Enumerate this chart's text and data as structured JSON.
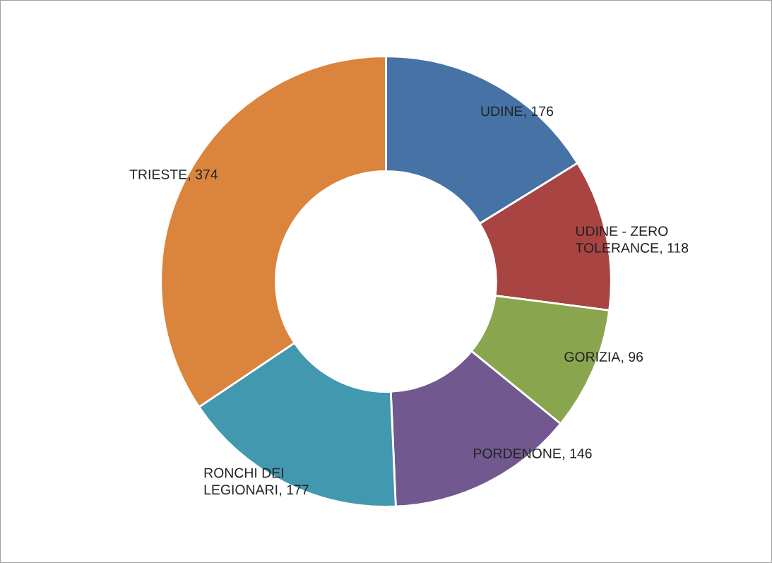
{
  "chart_data": {
    "type": "donut",
    "categories": [
      "UDINE",
      "UDINE - ZERO\nTOLERANCE",
      "GORIZIA",
      "PORDENONE",
      "RONCHI DEI\nLEGIONARI",
      "TRIESTE"
    ],
    "values": [
      176,
      118,
      96,
      146,
      177,
      374
    ],
    "colors": [
      "#4672a6",
      "#a84442",
      "#89a54e",
      "#71588f",
      "#4198af",
      "#db843d"
    ],
    "value_labels": [
      ", 176",
      ", 118",
      ", 96",
      ", 146",
      ", 177",
      ", 374"
    ],
    "legend": false
  }
}
